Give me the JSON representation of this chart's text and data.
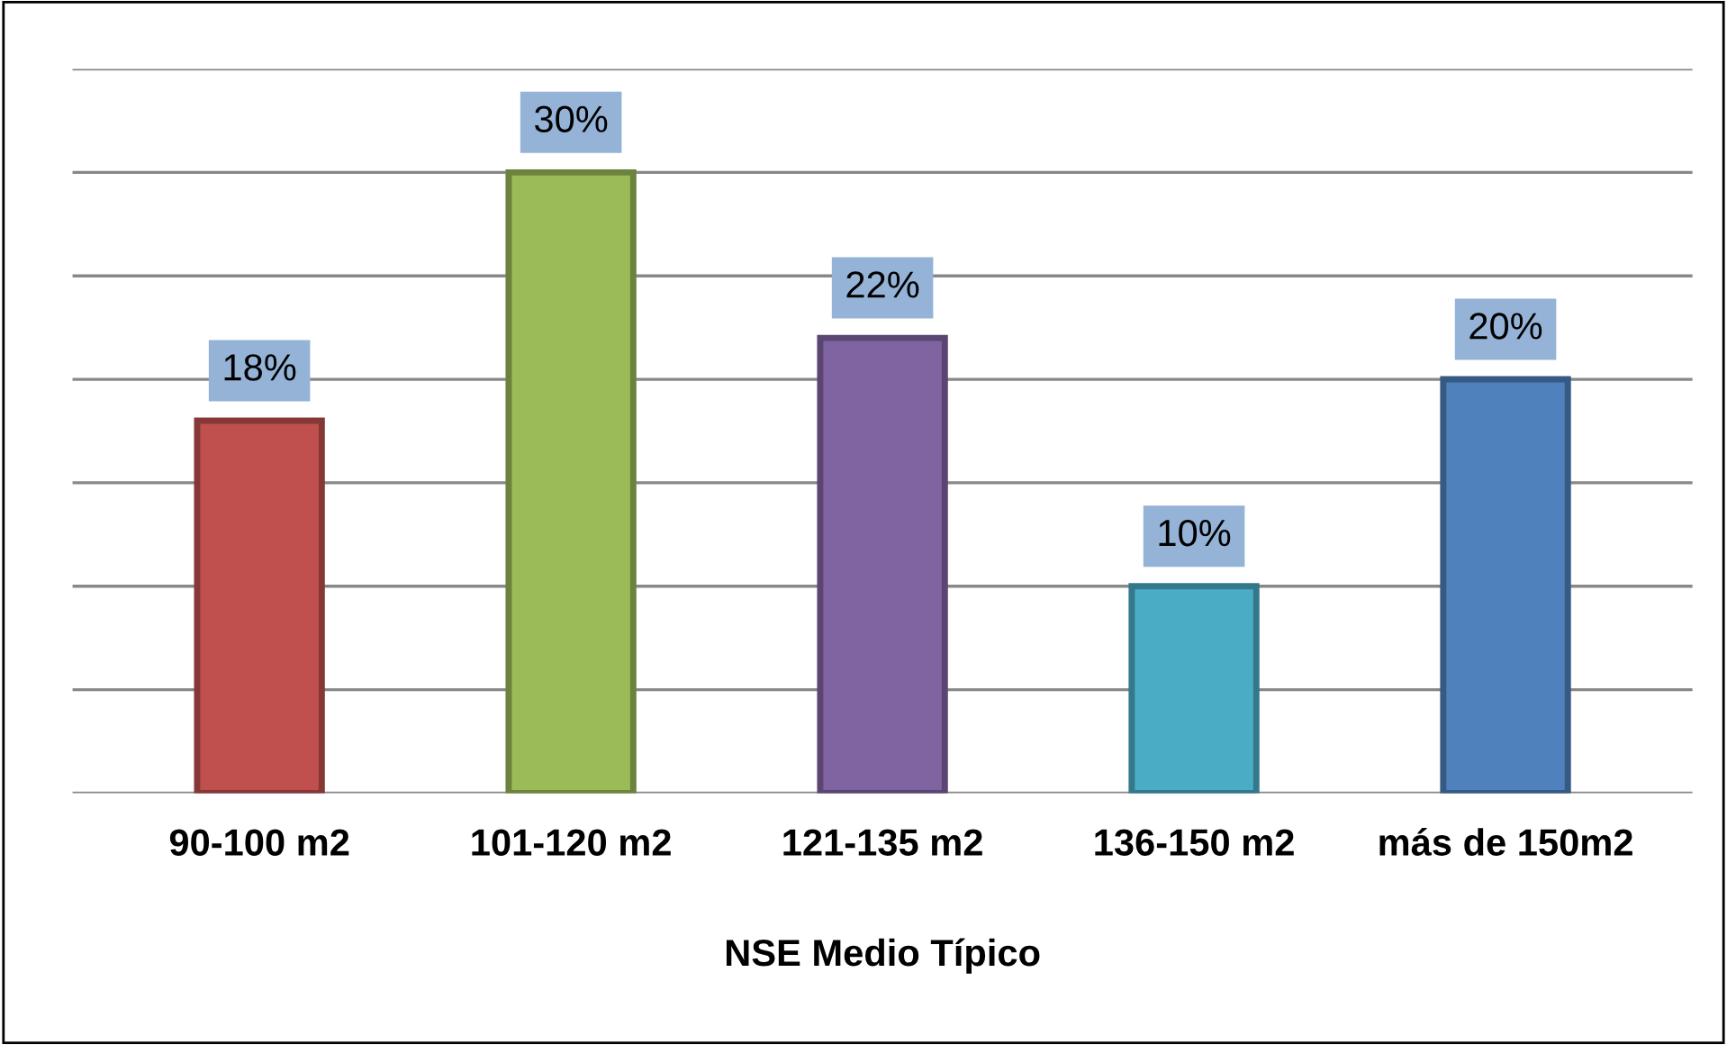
{
  "chart_data": {
    "type": "bar",
    "xlabel": "NSE Medio Típico",
    "categories": [
      "90-100 m2",
      "101-120 m2",
      "121-135 m2",
      "136-150 m2",
      "más de 150m2"
    ],
    "values": [
      18,
      30,
      22,
      10,
      20
    ],
    "colors": [
      "#c0504d",
      "#9bbb59",
      "#8064a2",
      "#4bacc6",
      "#4f81bd"
    ],
    "value_labels": [
      "18%",
      "30%",
      "22%",
      "10%",
      "20%"
    ],
    "ylim": [
      0,
      35
    ],
    "yticks": [
      {
        "value": 0,
        "label": null
      },
      {
        "value": 5,
        "label": null
      },
      {
        "value": 10,
        "label": null
      },
      {
        "value": 15,
        "label": null
      },
      {
        "value": 20,
        "label": null
      },
      {
        "value": 25,
        "label": null
      },
      {
        "value": 30,
        "label": null
      },
      {
        "value": 35,
        "label": null
      }
    ],
    "grid": "y"
  }
}
